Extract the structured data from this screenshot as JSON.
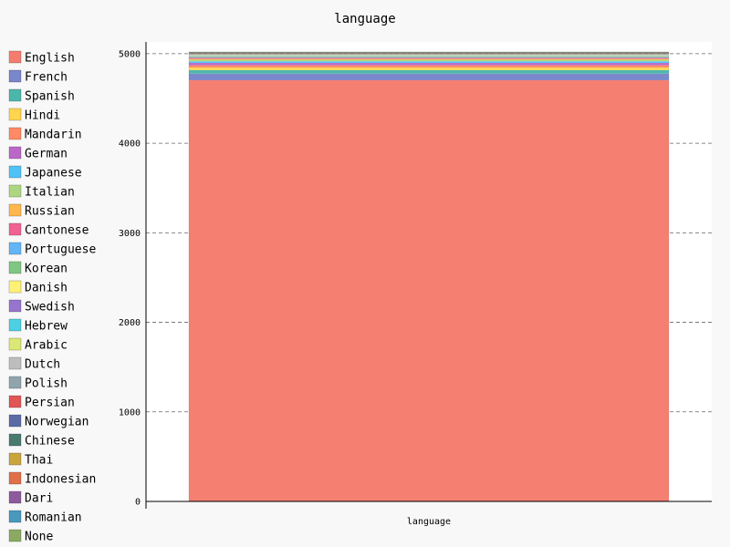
{
  "chart_data": {
    "type": "bar",
    "stacked": true,
    "title": "language",
    "xlabel": "",
    "ylabel": "",
    "categories": [
      "language"
    ],
    "ylim": [
      0,
      5100
    ],
    "yticks": [
      "0",
      "1000",
      "2000",
      "3000",
      "4000",
      "5000"
    ],
    "grid": true,
    "legend_position": "left",
    "series": [
      {
        "name": "English",
        "color": "#F57D6F",
        "values": [
          4704
        ]
      },
      {
        "name": "French",
        "color": "#7986CB",
        "values": [
          73
        ]
      },
      {
        "name": "Spanish",
        "color": "#4DB6AC",
        "values": [
          40
        ]
      },
      {
        "name": "Hindi",
        "color": "#FFD54F",
        "values": [
          28
        ]
      },
      {
        "name": "Mandarin",
        "color": "#FF8A65",
        "values": [
          26
        ]
      },
      {
        "name": "German",
        "color": "#BA68C8",
        "values": [
          26
        ]
      },
      {
        "name": "Japanese",
        "color": "#4FC3F7",
        "values": [
          18
        ]
      },
      {
        "name": "Italian",
        "color": "#AED581",
        "values": [
          17
        ]
      },
      {
        "name": "Russian",
        "color": "#FFB74D",
        "values": [
          11
        ]
      },
      {
        "name": "Cantonese",
        "color": "#F06292",
        "values": [
          11
        ]
      },
      {
        "name": "Portuguese",
        "color": "#64B5F6",
        "values": [
          8
        ]
      },
      {
        "name": "Korean",
        "color": "#81C784",
        "values": [
          8
        ]
      },
      {
        "name": "Danish",
        "color": "#FFF176",
        "values": [
          5
        ]
      },
      {
        "name": "Swedish",
        "color": "#9575CD",
        "values": [
          5
        ]
      },
      {
        "name": "Hebrew",
        "color": "#4DD0E1",
        "values": [
          5
        ]
      },
      {
        "name": "Arabic",
        "color": "#DCE775",
        "values": [
          5
        ]
      },
      {
        "name": "Dutch",
        "color": "#BDBDBD",
        "values": [
          4
        ]
      },
      {
        "name": "Polish",
        "color": "#90A4AE",
        "values": [
          4
        ]
      },
      {
        "name": "Persian",
        "color": "#E05555",
        "values": [
          4
        ]
      },
      {
        "name": "Norwegian",
        "color": "#5C6BA6",
        "values": [
          4
        ]
      },
      {
        "name": "Chinese",
        "color": "#4A7A6E",
        "values": [
          3
        ]
      },
      {
        "name": "Thai",
        "color": "#C9A53E",
        "values": [
          3
        ]
      },
      {
        "name": "Indonesian",
        "color": "#E0704A",
        "values": [
          2
        ]
      },
      {
        "name": "Dari",
        "color": "#8E5A9E",
        "values": [
          2
        ]
      },
      {
        "name": "Romanian",
        "color": "#4A98BE",
        "values": [
          2
        ]
      },
      {
        "name": "None",
        "color": "#8AAA62",
        "values": [
          2
        ]
      }
    ]
  }
}
